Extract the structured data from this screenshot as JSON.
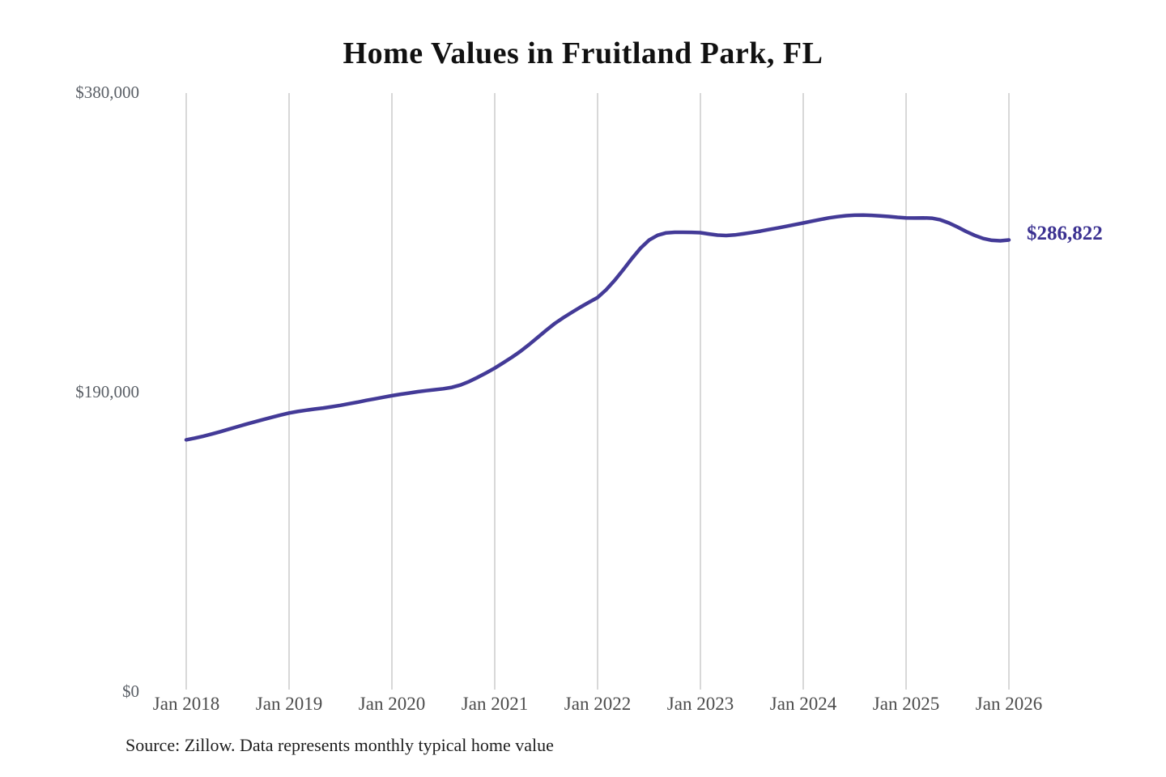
{
  "chart_data": {
    "type": "line",
    "title": "Home Values in Fruitland Park, FL",
    "source_note": "Source: Zillow. Data represents monthly typical home value",
    "end_label": "$286,822",
    "end_value": 286822,
    "x_tick_labels": [
      "Jan 2018",
      "Jan 2019",
      "Jan 2020",
      "Jan 2021",
      "Jan 2022",
      "Jan 2023",
      "Jan 2024",
      "Jan 2025",
      "Jan 2026"
    ],
    "y_ticks": [
      0,
      190000,
      380000
    ],
    "y_tick_labels": [
      "$0",
      "$190,000",
      "$380,000"
    ],
    "ylim": [
      0,
      380000
    ],
    "grid": "vertical-only",
    "legend": "none",
    "x_start": "Jan 2018",
    "x_end": "Jan 2026",
    "interval": "monthly",
    "series": [
      {
        "name": "Typical home value",
        "values": [
          160000,
          161100,
          162300,
          163700,
          165200,
          166800,
          168400,
          169900,
          171400,
          172900,
          174300,
          175700,
          177000,
          178000,
          178800,
          179500,
          180200,
          181000,
          181900,
          182900,
          183900,
          185000,
          186000,
          187000,
          188000,
          188900,
          189700,
          190500,
          191200,
          191800,
          192400,
          193300,
          194800,
          197000,
          199600,
          202500,
          205500,
          208900,
          212400,
          216200,
          220400,
          224900,
          229500,
          233800,
          237500,
          240900,
          244200,
          247300,
          250300,
          255200,
          261200,
          268000,
          275000,
          281500,
          286700,
          289800,
          291300,
          291700,
          291700,
          291600,
          291400,
          290600,
          289900,
          289600,
          290000,
          290700,
          291500,
          292400,
          293400,
          294400,
          295400,
          296500,
          297600,
          298700,
          299800,
          300800,
          301600,
          302200,
          302500,
          302600,
          302400,
          302100,
          301700,
          301200,
          300800,
          300700,
          300800,
          300600,
          299600,
          297600,
          295000,
          292200,
          289700,
          287700,
          286600,
          286300,
          286822
        ]
      }
    ],
    "colors": {
      "line": "#433a97",
      "end_label": "#3b3191",
      "gridline": "#cccccc",
      "y_tick_text": "#5a5f66",
      "x_tick_text": "#4c4c4c",
      "title_text": "#111111",
      "source_text": "#1d1d1d",
      "background": "#ffffff"
    }
  }
}
